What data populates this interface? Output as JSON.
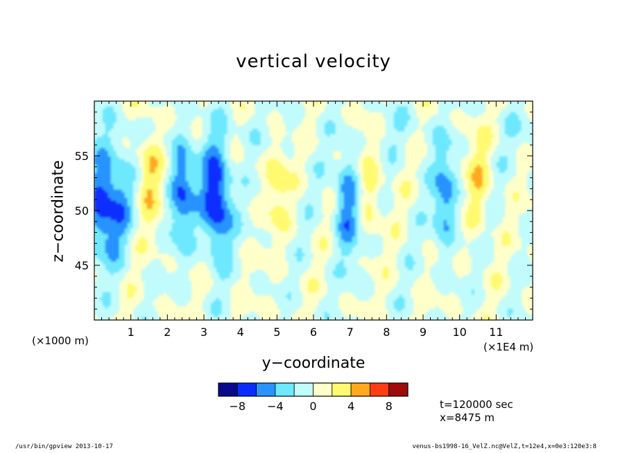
{
  "chart_data": {
    "type": "heatmap",
    "title": "vertical velocity",
    "xlabel": "y−coordinate",
    "ylabel": "z−coordinate",
    "x_unit": "(×1E4 m)",
    "y_unit": "(×1000 m)",
    "xlim": [
      0,
      12
    ],
    "ylim": [
      40,
      60
    ],
    "x_ticks": [
      1,
      2,
      3,
      4,
      5,
      6,
      7,
      8,
      9,
      10,
      11
    ],
    "y_ticks": [
      45,
      50,
      55
    ],
    "contour_levels": [
      -10,
      -8,
      -6,
      -4,
      -2,
      0,
      2,
      4,
      6,
      8,
      10
    ],
    "colorbar": {
      "tick_labels": [
        "−8",
        "−4",
        "0",
        "4",
        "8"
      ],
      "tick_values": [
        -8,
        -4,
        0,
        4,
        8
      ],
      "colors": [
        "#0a0a8c",
        "#0a2dff",
        "#2893ff",
        "#6de8ff",
        "#c2fbfb",
        "#ffffca",
        "#fffa70",
        "#ffaa1e",
        "#ff3c14",
        "#a00a0a"
      ]
    },
    "features": [
      {
        "y": 0.2,
        "z": 50.5,
        "w": -7
      },
      {
        "y": 0.7,
        "z": 51,
        "w": -4
      },
      {
        "y": 1.5,
        "z": 54,
        "w": 4
      },
      {
        "y": 2.4,
        "z": 52,
        "w": -6
      },
      {
        "y": 3.35,
        "z": 51,
        "w": -9
      },
      {
        "y": 5.0,
        "z": 53,
        "w": 3
      },
      {
        "y": 6.95,
        "z": 50.5,
        "w": -6
      },
      {
        "y": 7.5,
        "z": 52.5,
        "w": 3
      },
      {
        "y": 9.6,
        "z": 51,
        "w": -5
      },
      {
        "y": 10.5,
        "z": 53,
        "w": 3
      }
    ]
  },
  "info": {
    "time": "t=120000 sec",
    "position": "x=8475 m"
  },
  "footer": {
    "left": "/usr/bin/gpview  2013-10-17",
    "right": "venus-bs1998-16_VelZ.nc@VelZ,t=12e4,x=0e3:120e3:8"
  }
}
